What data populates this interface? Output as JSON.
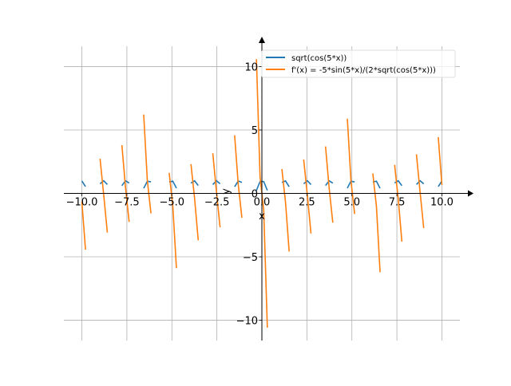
{
  "chart_data": {
    "type": "line",
    "title": "",
    "xlabel": "x",
    "ylabel": "y",
    "xlim": [
      -11,
      11
    ],
    "ylim": [
      -11.6,
      11.6
    ],
    "grid": true,
    "legend_position": "top-right",
    "x_ticks": [
      -10,
      -7.5,
      -5,
      -2.5,
      0,
      2.5,
      5,
      7.5,
      10
    ],
    "x_tick_labels": [
      "−10.0",
      "−7.5",
      "−5.0",
      "−2.5",
      "0.0",
      "2.5",
      "5.0",
      "7.5",
      "10.0"
    ],
    "y_ticks": [
      -10,
      -5,
      0,
      5,
      10
    ],
    "y_tick_labels": [
      "−10",
      "−5",
      "0",
      "5",
      "10"
    ],
    "sampling": {
      "x_start": -10,
      "x_end": 10,
      "points": 100
    },
    "series": [
      {
        "name": "sqrt(cos(5*x))",
        "expr": "sqrt(cos(5x))",
        "color": "#1f77b4"
      },
      {
        "name": "f'(x) = -5*sin(5*x)/(2*sqrt(cos(5*x)))",
        "expr": "-5sin(5x)/(2sqrt(cos(5x)))",
        "color": "#ff7f0e"
      }
    ]
  }
}
